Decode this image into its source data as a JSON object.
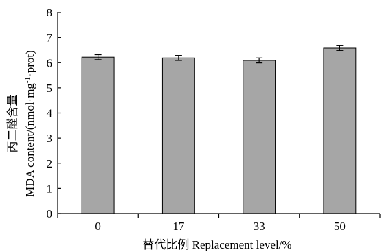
{
  "chart_data": {
    "type": "bar",
    "categories": [
      "0",
      "17",
      "33",
      "50"
    ],
    "values": [
      6.22,
      6.19,
      6.09,
      6.58
    ],
    "errors": [
      0.1,
      0.1,
      0.1,
      0.1
    ],
    "xlabel": "替代比例 Replacement level/%",
    "ylabel_line1": "丙二醛含量",
    "ylabel_line2": "MDA content/(nmol·mg",
    "ylabel_sup": "-1",
    "ylabel_line2_tail": "·prot)",
    "ylim": [
      0,
      8
    ],
    "yticks": [
      0,
      1,
      2,
      3,
      4,
      5,
      6,
      7,
      8
    ],
    "grid": false,
    "bar_color": "#a6a6a6",
    "bar_edge": "#000000"
  }
}
